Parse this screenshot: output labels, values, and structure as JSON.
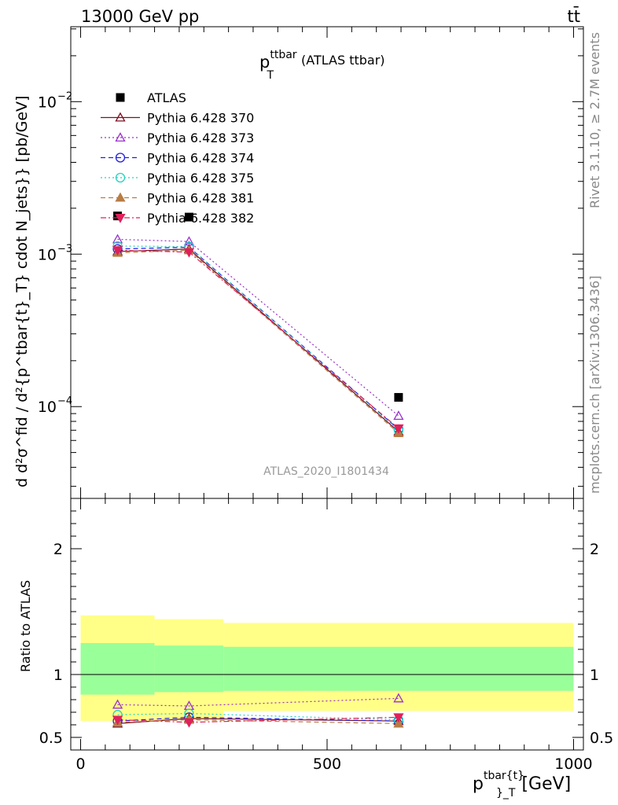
{
  "header": {
    "left": "13000 GeV pp",
    "right": "tt̄"
  },
  "side_text": {
    "rivet": "Rivet 3.1.10, ≥ 2.7M events",
    "mcplots": "mcplots.cern.ch [arXiv:1306.3436]"
  },
  "watermark": "ATLAS_2020_I1801434",
  "plot_title": {
    "main": "p",
    "sup": "ttbar",
    "sub": "T",
    "suffix": "(ATLAS ttbar)"
  },
  "y_axis_label_main": "d d²σ^fid / d²{p^tbar{t}_T} cdot N_jets}} [pb/GeV]",
  "ratio_ylabel": "Ratio to ATLAS",
  "x_axis_label": {
    "main": "p",
    "sup": "tbar{t}",
    "sub": "}_T",
    "unit": "[GeV]"
  },
  "chart_data": [
    {
      "type": "scatter",
      "panel": "main",
      "yscale": "log",
      "xlim": [
        -20,
        1020
      ],
      "ylim": [
        2.5e-05,
        0.031
      ],
      "y_ticks": [
        {
          "label": "10",
          "exp": "−4",
          "value": 0.0001
        },
        {
          "label": "10",
          "exp": "−3",
          "value": 0.001
        },
        {
          "label": "10",
          "exp": "−2",
          "value": 0.01
        }
      ],
      "x": [
        75,
        220,
        645
      ],
      "series": [
        {
          "name": "ATLAS",
          "color": "#000000",
          "marker": "square-filled",
          "dash": "none",
          "values": [
            0.00178,
            0.00175,
            0.000115
          ]
        },
        {
          "name": "Pythia 6.428 370",
          "color": "#7b1020",
          "marker": "triangle-open",
          "dash": "solid",
          "values": [
            0.00104,
            0.00108,
            6.85e-05
          ]
        },
        {
          "name": "Pythia 6.428 373",
          "color": "#9932cc",
          "marker": "triangle-open",
          "dash": "dotted",
          "values": [
            0.00125,
            0.00121,
            8.7e-05
          ]
        },
        {
          "name": "Pythia 6.428 374",
          "color": "#1f1fe0",
          "marker": "circle-open",
          "dash": "dashed",
          "values": [
            0.00108,
            0.00111,
            7.1e-05
          ]
        },
        {
          "name": "Pythia 6.428 375",
          "color": "#22d3c0",
          "marker": "circle-open",
          "dash": "dotted",
          "values": [
            0.00113,
            0.00112,
            7e-05
          ]
        },
        {
          "name": "Pythia 6.428 381",
          "color": "#b87c45",
          "marker": "triangle-filled",
          "dash": "dashed",
          "values": [
            0.00102,
            0.00106,
            6.7e-05
          ]
        },
        {
          "name": "Pythia 6.428 382",
          "color": "#e0205a",
          "marker": "triangle-down-filled",
          "dash": "dashdot",
          "values": [
            0.00106,
            0.00103,
            7.2e-05
          ]
        }
      ]
    },
    {
      "type": "scatter",
      "panel": "ratio",
      "xlim": [
        -20,
        1020
      ],
      "ylim": [
        0.4,
        2.4
      ],
      "x_ticks": [
        0,
        500,
        1000
      ],
      "y_ticks": [
        0.5,
        1,
        2
      ],
      "uncertainty_bands": [
        {
          "x_range": [
            0,
            150
          ],
          "inner": [
            0.84,
            1.25
          ],
          "outer": [
            0.63,
            1.47
          ]
        },
        {
          "x_range": [
            150,
            290
          ],
          "inner": [
            0.86,
            1.23
          ],
          "outer": [
            0.64,
            1.44
          ]
        },
        {
          "x_range": [
            290,
            1000
          ],
          "inner": [
            0.87,
            1.22
          ],
          "outer": [
            0.71,
            1.41
          ]
        }
      ],
      "band_colors": {
        "inner": "#99ff99",
        "outer": "#ffff88"
      },
      "x": [
        75,
        220,
        645
      ],
      "series": [
        {
          "name": "Pythia 6.428 370",
          "values": [
            0.61,
            0.65,
            0.63
          ]
        },
        {
          "name": "Pythia 6.428 373",
          "values": [
            0.76,
            0.75,
            0.81
          ]
        },
        {
          "name": "Pythia 6.428 374",
          "values": [
            0.63,
            0.66,
            0.63
          ]
        },
        {
          "name": "Pythia 6.428 375",
          "values": [
            0.68,
            0.69,
            0.64
          ]
        },
        {
          "name": "Pythia 6.428 381",
          "values": [
            0.62,
            0.64,
            0.61
          ]
        },
        {
          "name": "Pythia 6.428 382",
          "values": [
            0.64,
            0.62,
            0.66
          ]
        }
      ]
    }
  ]
}
